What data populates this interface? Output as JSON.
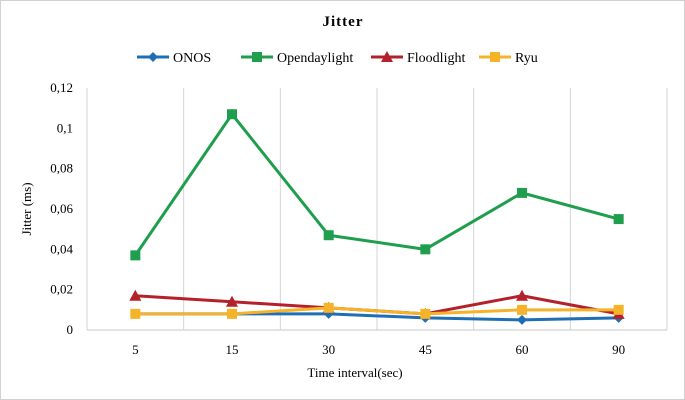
{
  "chart_data": {
    "type": "line",
    "title": "Jitter",
    "xlabel": "Time interval(sec)",
    "ylabel": "Jitter (ms)",
    "categories": [
      "5",
      "15",
      "30",
      "45",
      "60",
      "90"
    ],
    "ylim": [
      0,
      0.12
    ],
    "y_ticks": [
      "0",
      "0,02",
      "0,04",
      "0,06",
      "0,08",
      "0,1",
      "0,12"
    ],
    "legend_position": "top",
    "grid": "vertical",
    "series": [
      {
        "name": "ONOS",
        "color": "#1f6fb5",
        "marker": "diamond",
        "values": [
          0.008,
          0.008,
          0.008,
          0.006,
          0.005,
          0.006
        ]
      },
      {
        "name": "Opendaylight",
        "color": "#1f9e4e",
        "marker": "square",
        "values": [
          0.037,
          0.107,
          0.047,
          0.04,
          0.068,
          0.055
        ]
      },
      {
        "name": "Floodlight",
        "color": "#b5212a",
        "marker": "triangle",
        "values": [
          0.017,
          0.014,
          0.011,
          0.008,
          0.017,
          0.008
        ]
      },
      {
        "name": "Ryu",
        "color": "#f4b329",
        "marker": "square",
        "values": [
          0.008,
          0.008,
          0.011,
          0.008,
          0.01,
          0.01
        ]
      }
    ]
  }
}
